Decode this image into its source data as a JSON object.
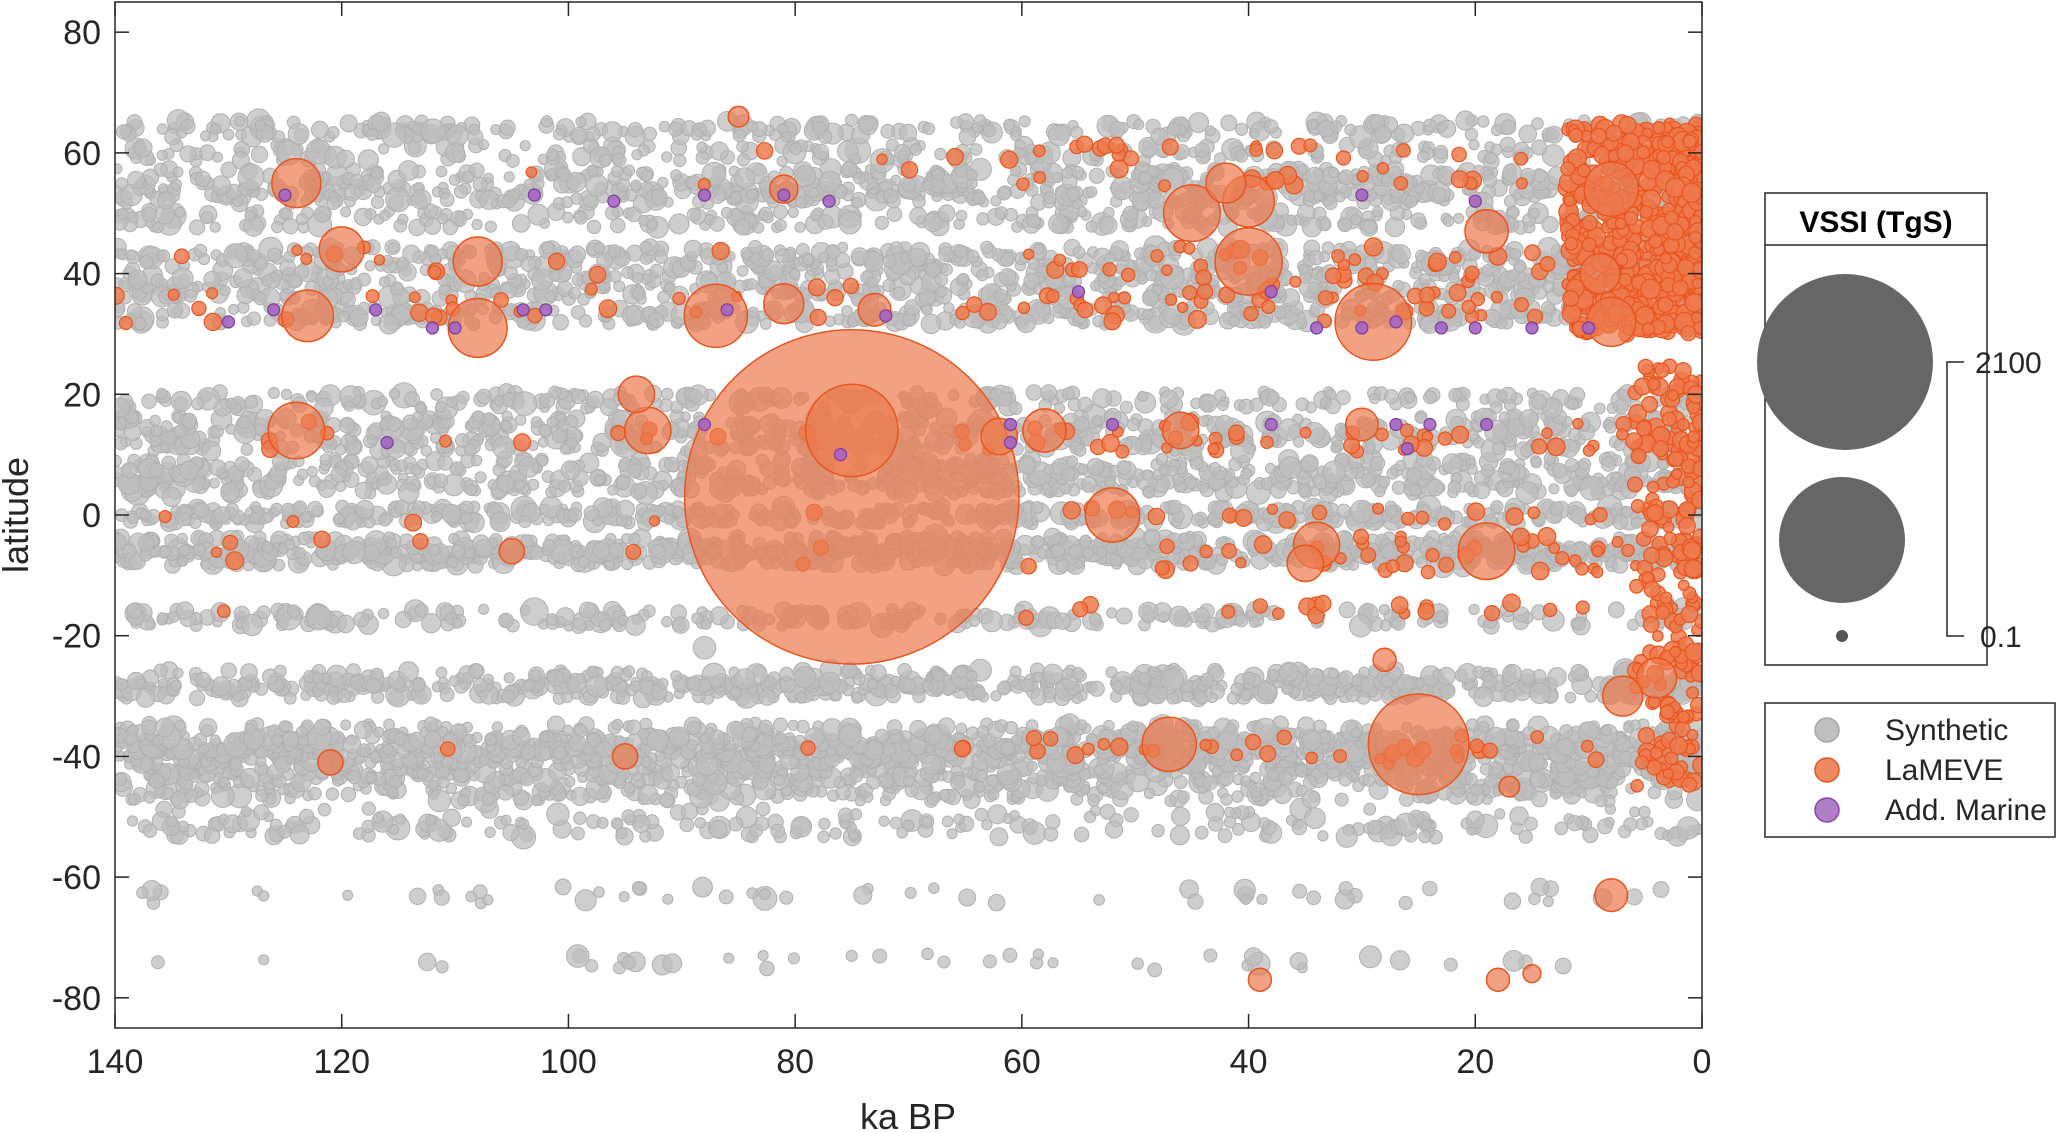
{
  "chart_data": {
    "type": "scatter",
    "title": "",
    "xlabel": "ka BP",
    "ylabel": "latitude",
    "xlim": [
      140,
      0
    ],
    "ylim": [
      -85,
      85
    ],
    "x_reversed": true,
    "grid": false,
    "xticks": [
      "140",
      "120",
      "100",
      "80",
      "60",
      "40",
      "20",
      "0"
    ],
    "yticks": [
      "80",
      "60",
      "40",
      "20",
      "0",
      "-20",
      "-40",
      "-60",
      "-80"
    ],
    "legend": {
      "placement": "right",
      "entries": [
        "Synthetic",
        "LaMEVE",
        "Add. Marine"
      ]
    },
    "size_legend": {
      "title": "VSSI (TgS)",
      "max_label": "2100",
      "min_label": "0.1",
      "reference_values": [
        2100,
        500,
        0.1
      ]
    },
    "series": [
      {
        "name": "Synthetic",
        "color": "#b9b9b9",
        "latitude_bands": [
          -74,
          -63,
          -52,
          -50,
          -46,
          -43,
          -40,
          -38,
          -36,
          -29,
          -27,
          -17,
          -7,
          -5,
          0,
          5,
          8,
          12,
          15,
          19,
          33,
          37,
          40,
          43,
          49,
          53,
          56,
          60,
          64
        ],
        "points": [
          {
            "x": 128,
            "y": 56,
            "v": 20
          },
          {
            "x": 110,
            "y": 60,
            "v": 10
          },
          {
            "x": 95,
            "y": 12,
            "v": 25
          },
          {
            "x": 88,
            "y": -22,
            "v": 15
          },
          {
            "x": 68,
            "y": 8,
            "v": 8
          },
          {
            "x": 42,
            "y": -17,
            "v": 12
          },
          {
            "x": 122,
            "y": -17,
            "v": 18
          },
          {
            "x": 103,
            "y": -16,
            "v": 22
          },
          {
            "x": 135,
            "y": 3,
            "v": 10
          }
        ]
      },
      {
        "name": "LaMEVE",
        "color": "#e8551e",
        "points": [
          {
            "x": 75,
            "y": 3,
            "v": 2100
          },
          {
            "x": 75,
            "y": 14,
            "v": 160
          },
          {
            "x": 25,
            "y": -38,
            "v": 190
          },
          {
            "x": 29,
            "y": 32,
            "v": 110
          },
          {
            "x": 87,
            "y": 33,
            "v": 75
          },
          {
            "x": 124,
            "y": 55,
            "v": 45
          },
          {
            "x": 124,
            "y": 14,
            "v": 60
          },
          {
            "x": 123,
            "y": 33,
            "v": 50
          },
          {
            "x": 120,
            "y": 44,
            "v": 38
          },
          {
            "x": 108,
            "y": 42,
            "v": 45
          },
          {
            "x": 108,
            "y": 31,
            "v": 65
          },
          {
            "x": 93,
            "y": 14,
            "v": 40
          },
          {
            "x": 94,
            "y": 20,
            "v": 25
          },
          {
            "x": 52,
            "y": 0,
            "v": 55
          },
          {
            "x": 45,
            "y": 50,
            "v": 60
          },
          {
            "x": 42,
            "y": 55,
            "v": 30
          },
          {
            "x": 40,
            "y": 42,
            "v": 85
          },
          {
            "x": 40,
            "y": 52,
            "v": 50
          },
          {
            "x": 47,
            "y": -38,
            "v": 55
          },
          {
            "x": 34,
            "y": -5,
            "v": 40
          },
          {
            "x": 35,
            "y": -8,
            "v": 25
          },
          {
            "x": 19,
            "y": -6,
            "v": 60
          },
          {
            "x": 19,
            "y": 47,
            "v": 35
          },
          {
            "x": 8,
            "y": 32,
            "v": 45
          },
          {
            "x": 8,
            "y": 54,
            "v": 55
          },
          {
            "x": 9,
            "y": 40,
            "v": 30
          },
          {
            "x": 4,
            "y": -27,
            "v": 30
          },
          {
            "x": 7,
            "y": -30,
            "v": 30
          },
          {
            "x": 8,
            "y": -63,
            "v": 20
          },
          {
            "x": 58,
            "y": 14,
            "v": 35
          },
          {
            "x": 62,
            "y": 13,
            "v": 25
          },
          {
            "x": 81,
            "y": 35,
            "v": 30
          },
          {
            "x": 73,
            "y": 34,
            "v": 20
          },
          {
            "x": 46,
            "y": 14,
            "v": 25
          },
          {
            "x": 30,
            "y": 15,
            "v": 20
          },
          {
            "x": 28,
            "y": -24,
            "v": 10
          },
          {
            "x": 105,
            "y": -6,
            "v": 12
          },
          {
            "x": 121,
            "y": -41,
            "v": 12
          },
          {
            "x": 95,
            "y": -40,
            "v": 12
          },
          {
            "x": 85,
            "y": 66,
            "v": 8
          },
          {
            "x": 39,
            "y": -77,
            "v": 10
          },
          {
            "x": 18,
            "y": -77,
            "v": 10
          },
          {
            "x": 81,
            "y": 54,
            "v": 15
          },
          {
            "x": 15,
            "y": -76,
            "v": 6
          },
          {
            "x": 17,
            "y": -45,
            "v": 8
          }
        ],
        "dense_region": {
          "x_from": 12,
          "x_to": 0,
          "y_from": 30,
          "y_to": 65
        }
      },
      {
        "name": "Add. Marine",
        "color": "#8e44ad",
        "points": [
          {
            "x": 125,
            "y": 53
          },
          {
            "x": 103,
            "y": 53
          },
          {
            "x": 96,
            "y": 52
          },
          {
            "x": 88,
            "y": 53
          },
          {
            "x": 81,
            "y": 53
          },
          {
            "x": 77,
            "y": 52
          },
          {
            "x": 30,
            "y": 53
          },
          {
            "x": 20,
            "y": 52
          },
          {
            "x": 130,
            "y": 32
          },
          {
            "x": 126,
            "y": 34
          },
          {
            "x": 117,
            "y": 34
          },
          {
            "x": 112,
            "y": 31
          },
          {
            "x": 110,
            "y": 31
          },
          {
            "x": 104,
            "y": 34
          },
          {
            "x": 102,
            "y": 34
          },
          {
            "x": 86,
            "y": 34
          },
          {
            "x": 72,
            "y": 33
          },
          {
            "x": 55,
            "y": 37
          },
          {
            "x": 38,
            "y": 37
          },
          {
            "x": 34,
            "y": 31
          },
          {
            "x": 30,
            "y": 31
          },
          {
            "x": 27,
            "y": 32
          },
          {
            "x": 23,
            "y": 31
          },
          {
            "x": 20,
            "y": 31
          },
          {
            "x": 15,
            "y": 31
          },
          {
            "x": 10,
            "y": 31
          },
          {
            "x": 116,
            "y": 12
          },
          {
            "x": 88,
            "y": 15
          },
          {
            "x": 76,
            "y": 10
          },
          {
            "x": 61,
            "y": 15
          },
          {
            "x": 61,
            "y": 12
          },
          {
            "x": 52,
            "y": 15
          },
          {
            "x": 38,
            "y": 15
          },
          {
            "x": 27,
            "y": 15
          },
          {
            "x": 26,
            "y": 11
          },
          {
            "x": 24,
            "y": 15
          },
          {
            "x": 19,
            "y": 15
          }
        ]
      }
    ]
  }
}
